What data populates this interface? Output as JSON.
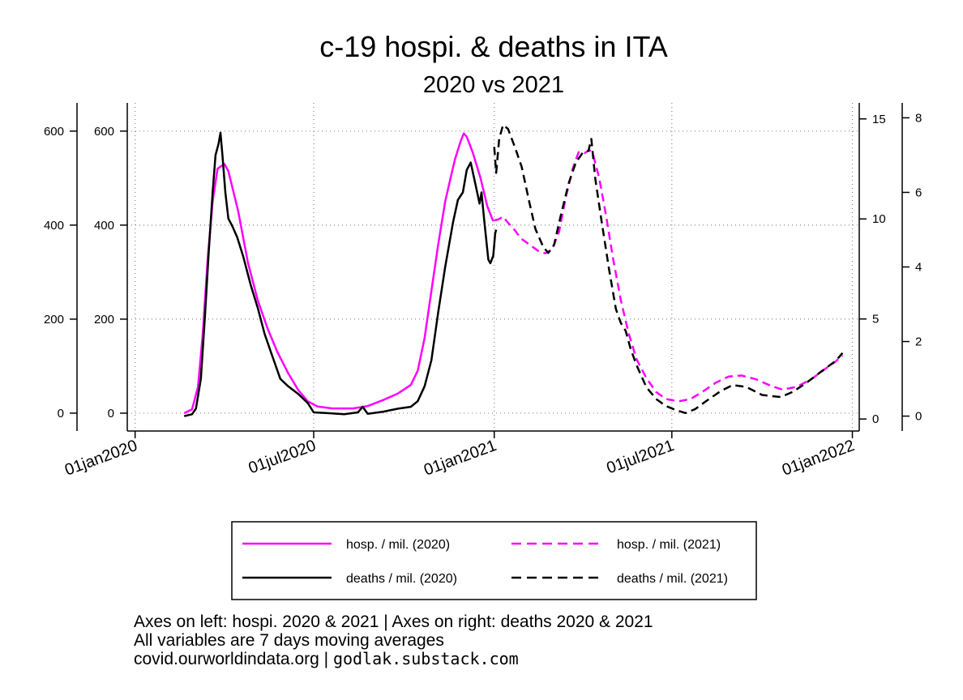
{
  "chart_data": {
    "type": "line",
    "title": "c-19 hospi. & deaths in ITA",
    "subtitle": "2020 vs 2021",
    "x_axis": {
      "type": "date",
      "range": [
        "2019-12-24",
        "2022-01-08"
      ],
      "ticks": [
        "2020-01-01",
        "2020-07-01",
        "2021-01-01",
        "2021-07-01",
        "2022-01-01"
      ],
      "tick_labels": [
        "01jan2020",
        "01jul2020",
        "01jan2021",
        "01jul2021",
        "01jan2022"
      ]
    },
    "y_axes": [
      {
        "id": "hosp_2020",
        "side": "left",
        "position": "outer",
        "range": [
          -38,
          660
        ],
        "ticks": [
          0,
          200,
          400,
          600
        ],
        "tick_labels": [
          "0",
          "200",
          "400",
          "600"
        ]
      },
      {
        "id": "hosp_2021",
        "side": "left",
        "position": "inner",
        "range": [
          -38,
          660
        ],
        "ticks": [
          0,
          200,
          400,
          600
        ],
        "tick_labels": [
          "0",
          "200",
          "400",
          "600"
        ]
      },
      {
        "id": "deaths_2021",
        "side": "right",
        "position": "inner",
        "range": [
          -0.6,
          15.8
        ],
        "ticks": [
          0,
          5,
          10,
          15
        ],
        "tick_labels": [
          "0",
          "5",
          "10",
          "15"
        ]
      },
      {
        "id": "deaths_2020",
        "side": "right",
        "position": "outer",
        "range": [
          -0.4,
          8.4
        ],
        "ticks": [
          0,
          2,
          4,
          6,
          8
        ],
        "tick_labels": [
          "0",
          "2",
          "4",
          "6",
          "8"
        ]
      }
    ],
    "grid": true,
    "series": [
      {
        "name": "hosp. / mil. (2020)",
        "axis": "hosp_2020",
        "color": "#ff00ff",
        "dash": "solid",
        "points": [
          [
            "2020-02-20",
            0
          ],
          [
            "2020-02-28",
            8
          ],
          [
            "2020-03-05",
            55
          ],
          [
            "2020-03-10",
            170
          ],
          [
            "2020-03-15",
            330
          ],
          [
            "2020-03-20",
            450
          ],
          [
            "2020-03-25",
            520
          ],
          [
            "2020-04-01",
            530
          ],
          [
            "2020-04-05",
            515
          ],
          [
            "2020-04-15",
            430
          ],
          [
            "2020-04-25",
            320
          ],
          [
            "2020-05-05",
            240
          ],
          [
            "2020-05-15",
            180
          ],
          [
            "2020-05-25",
            130
          ],
          [
            "2020-06-05",
            85
          ],
          [
            "2020-06-15",
            50
          ],
          [
            "2020-06-25",
            25
          ],
          [
            "2020-07-05",
            14
          ],
          [
            "2020-07-20",
            10
          ],
          [
            "2020-08-10",
            10
          ],
          [
            "2020-08-25",
            15
          ],
          [
            "2020-09-10",
            28
          ],
          [
            "2020-09-25",
            42
          ],
          [
            "2020-10-08",
            60
          ],
          [
            "2020-10-15",
            90
          ],
          [
            "2020-10-22",
            160
          ],
          [
            "2020-10-29",
            260
          ],
          [
            "2020-11-05",
            360
          ],
          [
            "2020-11-12",
            450
          ],
          [
            "2020-11-18",
            505
          ],
          [
            "2020-11-22",
            540
          ],
          [
            "2020-11-28",
            580
          ],
          [
            "2020-12-01",
            595
          ],
          [
            "2020-12-04",
            588
          ],
          [
            "2020-12-10",
            555
          ],
          [
            "2020-12-18",
            500
          ],
          [
            "2020-12-25",
            440
          ],
          [
            "2020-12-31",
            408
          ]
        ]
      },
      {
        "name": "hosp. / mil. (2021)",
        "axis": "hosp_2021",
        "color": "#ff00ff",
        "dash": "dashed",
        "points": [
          [
            "2021-01-01",
            410
          ],
          [
            "2021-01-05",
            412
          ],
          [
            "2021-01-10",
            418
          ],
          [
            "2021-01-15",
            405
          ],
          [
            "2021-01-20",
            395
          ],
          [
            "2021-01-28",
            372
          ],
          [
            "2021-02-05",
            360
          ],
          [
            "2021-02-15",
            345
          ],
          [
            "2021-02-22",
            340
          ],
          [
            "2021-03-01",
            348
          ],
          [
            "2021-03-08",
            385
          ],
          [
            "2021-03-15",
            460
          ],
          [
            "2021-03-22",
            520
          ],
          [
            "2021-03-28",
            555
          ],
          [
            "2021-04-03",
            553
          ],
          [
            "2021-04-08",
            560
          ],
          [
            "2021-04-12",
            548
          ],
          [
            "2021-04-18",
            500
          ],
          [
            "2021-04-25",
            420
          ],
          [
            "2021-05-02",
            330
          ],
          [
            "2021-05-10",
            240
          ],
          [
            "2021-05-18",
            170
          ],
          [
            "2021-05-26",
            115
          ],
          [
            "2021-06-05",
            75
          ],
          [
            "2021-06-15",
            45
          ],
          [
            "2021-06-25",
            30
          ],
          [
            "2021-07-08",
            25
          ],
          [
            "2021-07-20",
            30
          ],
          [
            "2021-08-01",
            45
          ],
          [
            "2021-08-15",
            65
          ],
          [
            "2021-08-28",
            78
          ],
          [
            "2021-09-10",
            80
          ],
          [
            "2021-09-25",
            72
          ],
          [
            "2021-10-10",
            58
          ],
          [
            "2021-10-22",
            50
          ],
          [
            "2021-11-05",
            56
          ],
          [
            "2021-11-20",
            72
          ],
          [
            "2021-12-05",
            95
          ],
          [
            "2021-12-15",
            110
          ],
          [
            "2021-12-22",
            123
          ]
        ]
      },
      {
        "name": "deaths / mil. (2020)",
        "axis": "deaths_2020",
        "color": "#000000",
        "dash": "solid",
        "points": [
          [
            "2020-02-20",
            0
          ],
          [
            "2020-02-28",
            0.05
          ],
          [
            "2020-03-03",
            0.2
          ],
          [
            "2020-03-08",
            1.0
          ],
          [
            "2020-03-12",
            2.6
          ],
          [
            "2020-03-16",
            4.4
          ],
          [
            "2020-03-20",
            6.0
          ],
          [
            "2020-03-23",
            7.0
          ],
          [
            "2020-03-26",
            7.3
          ],
          [
            "2020-03-28",
            7.6
          ],
          [
            "2020-03-30",
            7.0
          ],
          [
            "2020-04-02",
            6.0
          ],
          [
            "2020-04-05",
            5.3
          ],
          [
            "2020-04-09",
            5.1
          ],
          [
            "2020-04-14",
            4.8
          ],
          [
            "2020-04-20",
            4.3
          ],
          [
            "2020-04-28",
            3.5
          ],
          [
            "2020-05-05",
            2.9
          ],
          [
            "2020-05-12",
            2.2
          ],
          [
            "2020-05-20",
            1.6
          ],
          [
            "2020-05-28",
            1.0
          ],
          [
            "2020-06-05",
            0.8
          ],
          [
            "2020-06-15",
            0.6
          ],
          [
            "2020-06-25",
            0.35
          ],
          [
            "2020-07-01",
            0.1
          ],
          [
            "2020-07-15",
            0.08
          ],
          [
            "2020-08-01",
            0.05
          ],
          [
            "2020-08-15",
            0.1
          ],
          [
            "2020-08-20",
            0.25
          ],
          [
            "2020-08-25",
            0.06
          ],
          [
            "2020-09-10",
            0.12
          ],
          [
            "2020-09-25",
            0.2
          ],
          [
            "2020-10-08",
            0.25
          ],
          [
            "2020-10-15",
            0.4
          ],
          [
            "2020-10-22",
            0.8
          ],
          [
            "2020-10-29",
            1.5
          ],
          [
            "2020-11-05",
            2.8
          ],
          [
            "2020-11-12",
            4.0
          ],
          [
            "2020-11-20",
            5.2
          ],
          [
            "2020-11-25",
            5.8
          ],
          [
            "2020-11-30",
            6.0
          ],
          [
            "2020-12-04",
            6.6
          ],
          [
            "2020-12-08",
            6.8
          ],
          [
            "2020-12-13",
            6.2
          ],
          [
            "2020-12-17",
            5.7
          ],
          [
            "2020-12-19",
            6.0
          ],
          [
            "2020-12-22",
            5.2
          ],
          [
            "2020-12-26",
            4.2
          ],
          [
            "2020-12-28",
            4.1
          ],
          [
            "2020-12-31",
            4.3
          ],
          [
            "2021-01-02",
            4.9
          ],
          [
            "2021-01-03",
            5.0
          ]
        ]
      },
      {
        "name": "deaths / mil. (2021)",
        "axis": "deaths_2021",
        "color": "#000000",
        "dash": "dashed",
        "points": [
          [
            "2021-01-01",
            13.6
          ],
          [
            "2021-01-03",
            12.3
          ],
          [
            "2021-01-06",
            14.0
          ],
          [
            "2021-01-10",
            14.7
          ],
          [
            "2021-01-15",
            14.5
          ],
          [
            "2021-01-22",
            13.6
          ],
          [
            "2021-01-29",
            12.6
          ],
          [
            "2021-02-05",
            11.0
          ],
          [
            "2021-02-12",
            9.5
          ],
          [
            "2021-02-20",
            8.6
          ],
          [
            "2021-02-25",
            8.3
          ],
          [
            "2021-03-03",
            8.7
          ],
          [
            "2021-03-10",
            10.2
          ],
          [
            "2021-03-18",
            11.8
          ],
          [
            "2021-03-25",
            12.8
          ],
          [
            "2021-04-01",
            13.3
          ],
          [
            "2021-04-07",
            13.4
          ],
          [
            "2021-04-10",
            14.0
          ],
          [
            "2021-04-14",
            12.0
          ],
          [
            "2021-04-20",
            10.0
          ],
          [
            "2021-04-28",
            7.5
          ],
          [
            "2021-05-05",
            5.5
          ],
          [
            "2021-05-10",
            4.8
          ],
          [
            "2021-05-15",
            4.4
          ],
          [
            "2021-05-20",
            3.5
          ],
          [
            "2021-05-26",
            2.7
          ],
          [
            "2021-06-05",
            1.6
          ],
          [
            "2021-06-15",
            1.0
          ],
          [
            "2021-06-25",
            0.65
          ],
          [
            "2021-07-05",
            0.45
          ],
          [
            "2021-07-15",
            0.3
          ],
          [
            "2021-07-25",
            0.5
          ],
          [
            "2021-08-05",
            0.9
          ],
          [
            "2021-08-20",
            1.4
          ],
          [
            "2021-09-01",
            1.7
          ],
          [
            "2021-09-15",
            1.6
          ],
          [
            "2021-10-01",
            1.2
          ],
          [
            "2021-10-10",
            1.15
          ],
          [
            "2021-10-20",
            1.1
          ],
          [
            "2021-11-01",
            1.35
          ],
          [
            "2021-11-15",
            1.8
          ],
          [
            "2021-12-01",
            2.4
          ],
          [
            "2021-12-15",
            2.9
          ],
          [
            "2021-12-22",
            3.3
          ]
        ]
      }
    ],
    "legend": {
      "placement": "bottom",
      "columns": 2,
      "entries": [
        "hosp. / mil. (2020)",
        "hosp. / mil. (2021)",
        "deaths / mil. (2020)",
        "deaths / mil. (2021)"
      ]
    }
  },
  "notes": {
    "line1": "Axes on left: hospi. 2020 & 2021 | Axes on right: deaths 2020 & 2021",
    "line2": "All variables are 7 days moving averages",
    "line3_source": "covid.ourworldindata.org |",
    "line3_handle": "godlak.substack.com"
  }
}
